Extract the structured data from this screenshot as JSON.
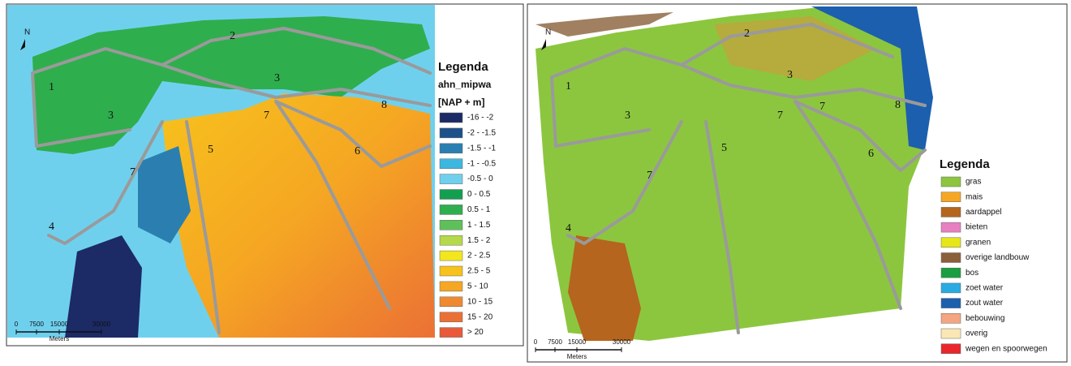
{
  "left_map": {
    "north": "N",
    "region_labels": [
      "1",
      "2",
      "3",
      "3",
      "7",
      "8",
      "5",
      "6",
      "7",
      "4"
    ],
    "scale": {
      "ticks": [
        "0",
        "7500",
        "15000",
        "30000"
      ],
      "unit": "Meters"
    },
    "legend": {
      "title": "Legenda",
      "field": "ahn_mipwa",
      "unit": "[NAP + m]",
      "items": [
        {
          "label": "-16 - -2",
          "color": "#1c2a66"
        },
        {
          "label": "-2 - -1.5",
          "color": "#1d4f8a"
        },
        {
          "label": "-1.5 - -1",
          "color": "#2a7fb0"
        },
        {
          "label": "-1 - -0.5",
          "color": "#3cb7e0"
        },
        {
          "label": "-0.5 - 0",
          "color": "#6fd0ee"
        },
        {
          "label": "0 - 0.5",
          "color": "#12a050"
        },
        {
          "label": "0.5 - 1",
          "color": "#2fae4e"
        },
        {
          "label": "1 - 1.5",
          "color": "#5ec05a"
        },
        {
          "label": "1.5 - 2",
          "color": "#b5d94a"
        },
        {
          "label": "2 - 2.5",
          "color": "#f3e61c"
        },
        {
          "label": "2.5 - 5",
          "color": "#f7c21c"
        },
        {
          "label": "5 - 10",
          "color": "#f5a623"
        },
        {
          "label": "10 - 15",
          "color": "#f08a30"
        },
        {
          "label": "15 - 20",
          "color": "#eb7035"
        },
        {
          "label": "> 20",
          "color": "#e85a3a"
        }
      ]
    }
  },
  "right_map": {
    "north": "N",
    "region_labels": [
      "1",
      "2",
      "3",
      "3",
      "7",
      "7",
      "8",
      "5",
      "6",
      "7",
      "4"
    ],
    "scale": {
      "ticks": [
        "0",
        "7500",
        "15000",
        "30000"
      ],
      "unit": "Meters"
    },
    "legend": {
      "title": "Legenda",
      "items": [
        {
          "label": "gras",
          "color": "#8cc63f"
        },
        {
          "label": "mais",
          "color": "#f5a623"
        },
        {
          "label": "aardappel",
          "color": "#b5651d"
        },
        {
          "label": "bieten",
          "color": "#e77fc0"
        },
        {
          "label": "granen",
          "color": "#e6e619"
        },
        {
          "label": "overige landbouw",
          "color": "#8b5e3c"
        },
        {
          "label": "bos",
          "color": "#1a9e3f"
        },
        {
          "label": "zoet water",
          "color": "#29abe2"
        },
        {
          "label": "zout water",
          "color": "#1c5fae"
        },
        {
          "label": "bebouwing",
          "color": "#f4a582"
        },
        {
          "label": "overig",
          "color": "#fbe7b5"
        },
        {
          "label": "wegen en spoorwegen",
          "color": "#e8262c"
        }
      ]
    }
  }
}
